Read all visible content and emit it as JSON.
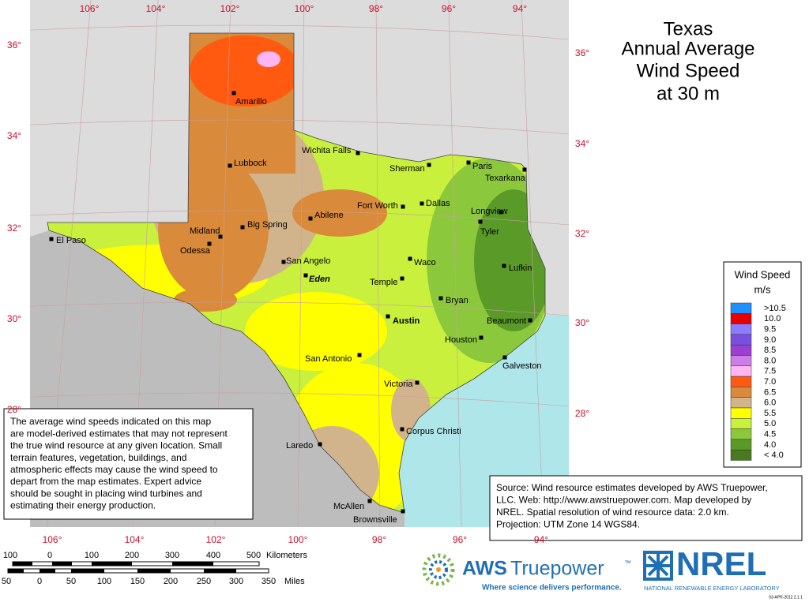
{
  "title": [
    "Texas",
    "Annual Average",
    "Wind Speed",
    "at 30 m"
  ],
  "longitude_top": [
    "106°",
    "104°",
    "102°",
    "100°",
    "98°",
    "96°",
    "94°"
  ],
  "longitude_bottom": [
    "106°",
    "104°",
    "102°",
    "100°",
    "98°",
    "96°",
    "94°"
  ],
  "latitude_left": [
    "36°",
    "34°",
    "32°",
    "30°",
    "28°"
  ],
  "latitude_right": [
    "36°",
    "34°",
    "32°",
    "30°",
    "28°"
  ],
  "cities": [
    "Amarillo",
    "Lubbock",
    "Wichita Falls",
    "Sherman",
    "Paris",
    "Texarkana",
    "Dallas",
    "Fort Worth",
    "Abilene",
    "Longview",
    "Tyler",
    "El Paso",
    "Midland",
    "Big Spring",
    "Odessa",
    "San Angelo",
    "Waco",
    "Eden",
    "Lufkin",
    "Temple",
    "Bryan",
    "Austin",
    "Beaumont",
    "Houston",
    "San Antonio",
    "Galveston",
    "Victoria",
    "Corpus Christi",
    "Laredo",
    "McAllen",
    "Brownsville"
  ],
  "legend": {
    "title": "Wind Speed",
    "unit": "m/s",
    "items": [
      {
        "label": ">10.5",
        "color": "#1e90ff"
      },
      {
        "label": "10.0",
        "color": "#e60000"
      },
      {
        "label": "9.5",
        "color": "#8c7cff"
      },
      {
        "label": "9.0",
        "color": "#7a4fe0"
      },
      {
        "label": "8.5",
        "color": "#9b3fd0"
      },
      {
        "label": "8.0",
        "color": "#cc7ee6"
      },
      {
        "label": "7.5",
        "color": "#ffb6f2"
      },
      {
        "label": "7.0",
        "color": "#ff5a10"
      },
      {
        "label": "6.5",
        "color": "#d98a3a"
      },
      {
        "label": "6.0",
        "color": "#d2b48c"
      },
      {
        "label": "5.5",
        "color": "#ffff00"
      },
      {
        "label": "5.0",
        "color": "#c8f03c"
      },
      {
        "label": "4.5",
        "color": "#8cc83c"
      },
      {
        "label": "4.0",
        "color": "#5a9a28"
      },
      {
        "label": "< 4.0",
        "color": "#4a7a20"
      }
    ]
  },
  "disclaimer": [
    "The average wind speeds indicated on this map",
    "are model-derived estimates that may not represent",
    "the true wind resource at any given location. Small",
    "terrain features, vegetation, buildings, and",
    "atmospheric effects may cause the wind speed to",
    "depart from the map estimates. Expert advice",
    "should be sought in placing wind turbines and",
    "estimating their energy production."
  ],
  "source": [
    "Source: Wind resource estimates developed by AWS Truepower,",
    "LLC.  Web: http://www.awstruepower.com.  Map developed by",
    "NREL.  Spatial resolution of wind resource data:  2.0 km.",
    "Projection:  UTM Zone 14 WGS84."
  ],
  "scale_km": {
    "ticks": [
      "100",
      "0",
      "100",
      "200",
      "300",
      "400",
      "500"
    ],
    "unit": "Kilometers"
  },
  "scale_miles": {
    "ticks": [
      "50",
      "0",
      "50",
      "100",
      "150",
      "200",
      "250",
      "300",
      "350"
    ],
    "unit": "Miles"
  },
  "aws": {
    "name1": "AWS",
    "name2": "Truepower",
    "tm": "™",
    "tagline": "Where science delivers performance."
  },
  "nrel": {
    "name": "NREL",
    "full": "NATIONAL RENEWABLE ENERGY LABORATORY"
  },
  "date": "03-APR-2012 2.1.1"
}
